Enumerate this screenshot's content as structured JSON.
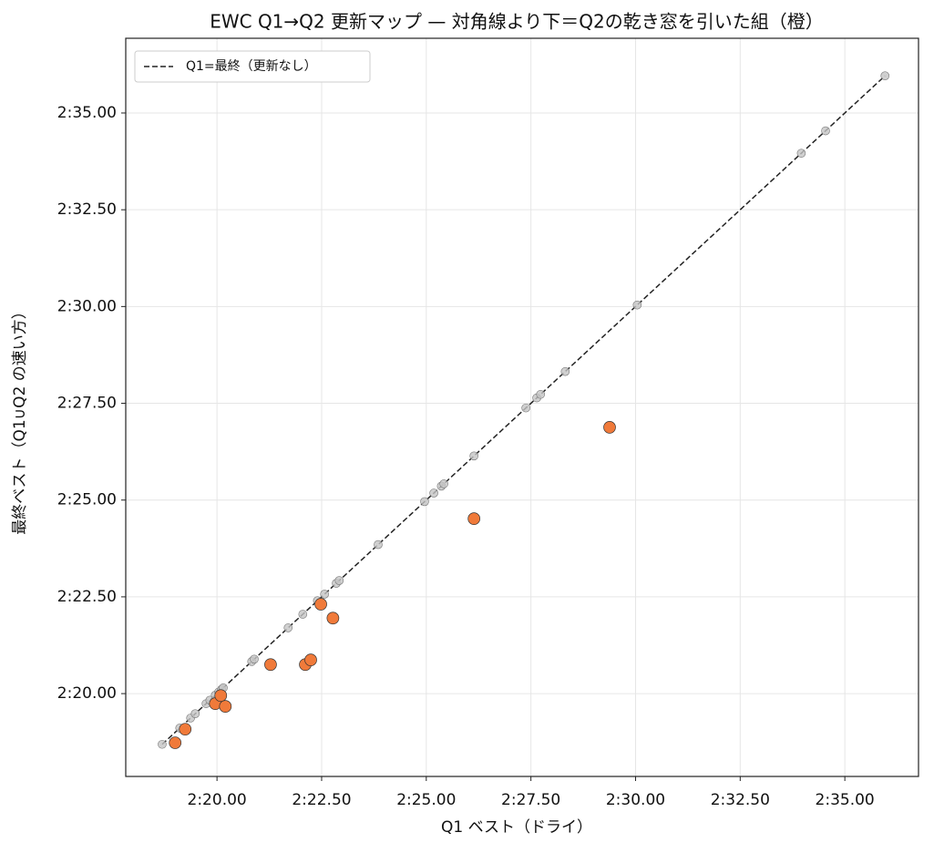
{
  "chart_data": {
    "type": "scatter",
    "title": "EWC Q1→Q2 更新マップ — 対角線より下＝Q2の乾き窓を引いた組（橙）",
    "xlabel": "Q1 ベスト（ドライ）",
    "ylabel": "最終ベスト（Q1∪Q2 の速い方）",
    "xlim": [
      137.82,
      156.76
    ],
    "ylim": [
      137.86,
      156.93
    ],
    "xticks": [
      {
        "value": 140,
        "label": "2:20.00"
      },
      {
        "value": 142.5,
        "label": "2:22.50"
      },
      {
        "value": 145,
        "label": "2:25.00"
      },
      {
        "value": 147.5,
        "label": "2:27.50"
      },
      {
        "value": 150,
        "label": "2:30.00"
      },
      {
        "value": 152.5,
        "label": "2:32.50"
      },
      {
        "value": 155,
        "label": "2:35.00"
      }
    ],
    "yticks": [
      {
        "value": 140,
        "label": "2:20.00"
      },
      {
        "value": 142.5,
        "label": "2:22.50"
      },
      {
        "value": 145,
        "label": "2:25.00"
      },
      {
        "value": 147.5,
        "label": "2:27.50"
      },
      {
        "value": 150,
        "label": "2:30.00"
      },
      {
        "value": 152.5,
        "label": "2:32.50"
      },
      {
        "value": 155,
        "label": "2:35.00"
      }
    ],
    "grid": true,
    "legend": "upper left",
    "reference": {
      "name": "Q1=最終（更新なし）",
      "color": "#222222",
      "x": [
        138.69,
        155.96
      ],
      "y": [
        138.69,
        155.96
      ]
    },
    "series": [
      {
        "color": "#c4c4c4",
        "x": [
          138.69,
          139.11,
          139.37,
          139.48,
          139.74,
          139.83,
          139.96,
          140.04,
          140.11,
          140.15,
          140.83,
          140.89,
          141.7,
          142.05,
          142.4,
          142.57,
          142.85,
          142.92,
          143.85,
          144.96,
          145.18,
          145.36,
          145.42,
          146.14,
          147.38,
          147.64,
          147.73,
          148.32,
          150.04,
          153.96,
          154.54,
          155.96
        ],
        "y": [
          138.69,
          139.11,
          139.37,
          139.48,
          139.74,
          139.83,
          139.96,
          140.04,
          140.11,
          140.15,
          140.83,
          140.89,
          141.7,
          142.05,
          142.4,
          142.57,
          142.85,
          142.92,
          143.85,
          144.96,
          145.18,
          145.36,
          145.42,
          146.14,
          147.38,
          147.64,
          147.73,
          148.32,
          150.04,
          153.96,
          154.54,
          155.96
        ]
      },
      {
        "color": "#f07a3a",
        "x": [
          139.0,
          139.24,
          139.96,
          140.09,
          140.2,
          141.28,
          142.11,
          142.24,
          142.48,
          142.77,
          146.14,
          149.38
        ],
        "y": [
          138.73,
          139.08,
          139.74,
          139.95,
          139.67,
          140.75,
          140.75,
          140.87,
          142.31,
          141.95,
          144.52,
          146.88
        ]
      }
    ]
  }
}
